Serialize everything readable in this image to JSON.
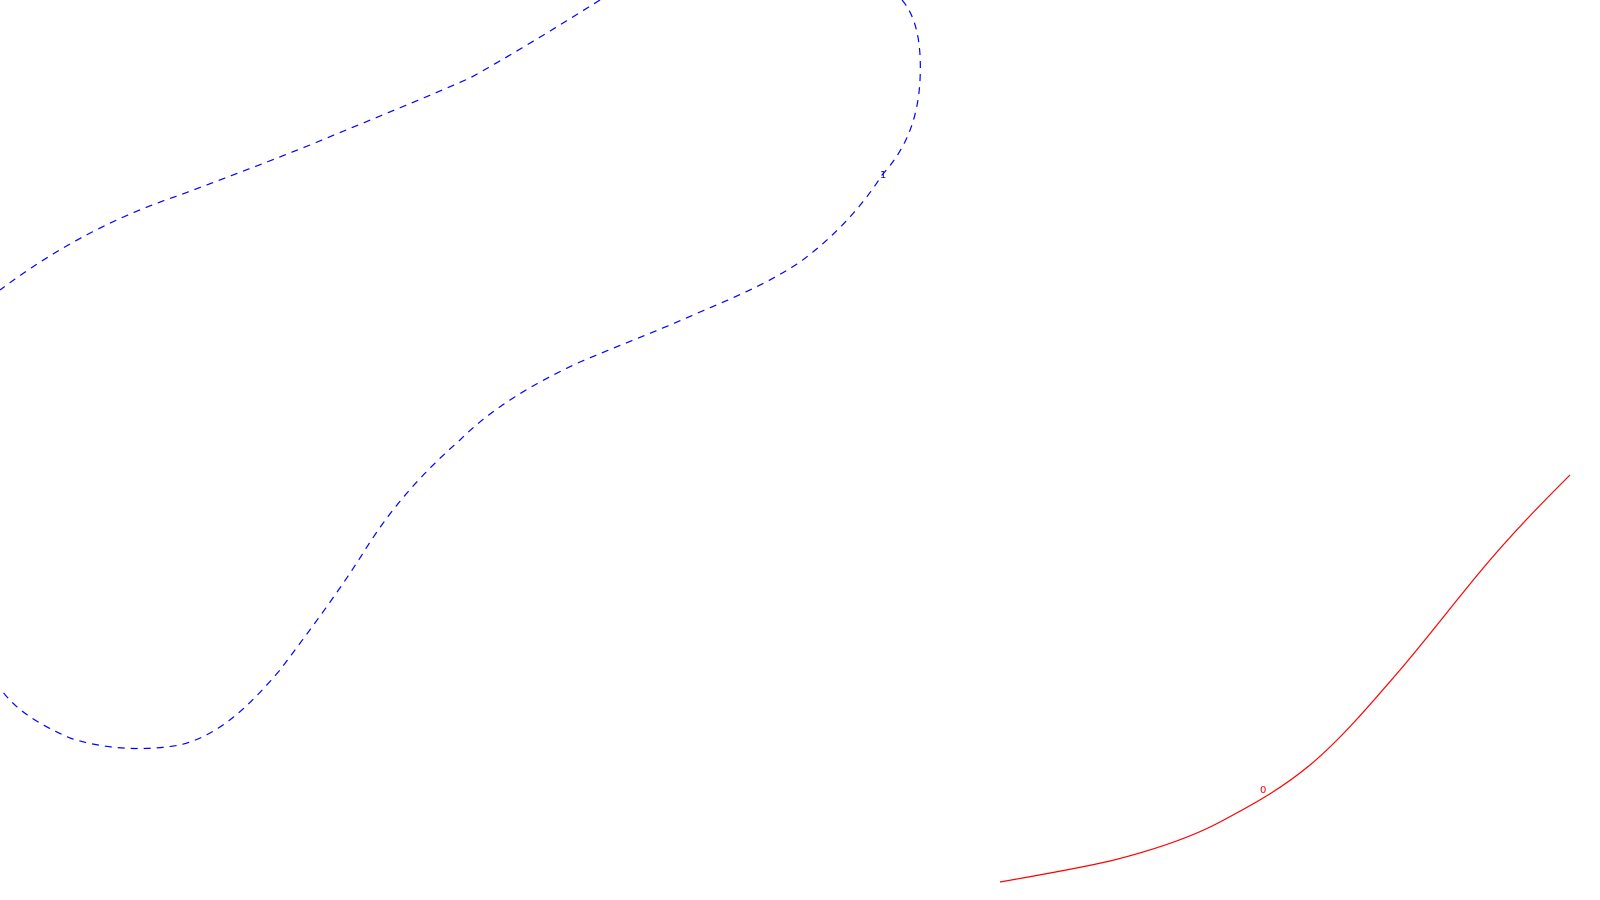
{
  "chart_data": {
    "type": "contour",
    "title": "",
    "xlabel": "",
    "ylabel": "",
    "grid": false,
    "legend": "none",
    "contours": [
      {
        "level": "1",
        "label": "1",
        "color": "#0000ff",
        "style": "dashed"
      },
      {
        "level": "0",
        "label": "0",
        "color": "#ff0000",
        "style": "solid"
      }
    ]
  }
}
